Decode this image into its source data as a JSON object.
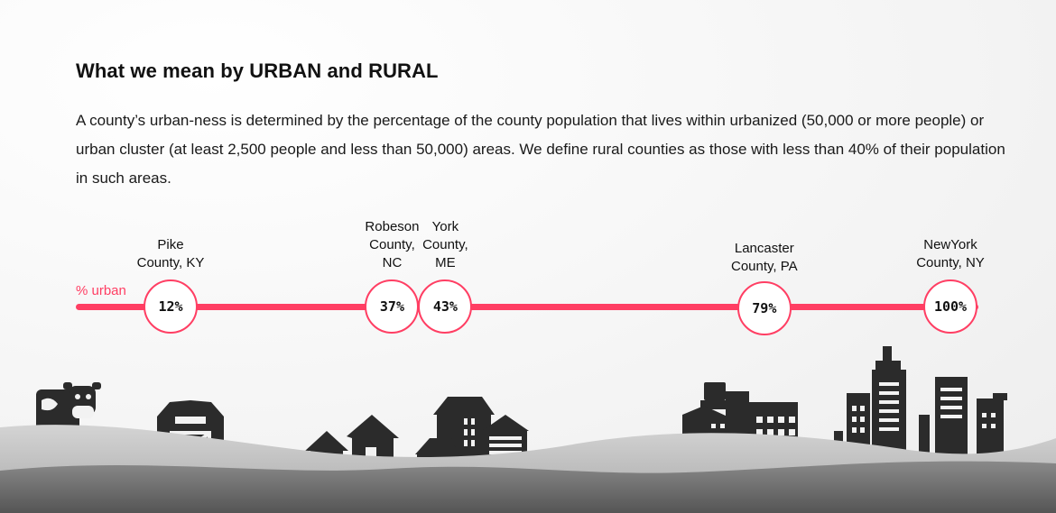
{
  "title": "What we mean by URBAN and RURAL",
  "description": "A county’s urban-ness is determined by the percentage of the county population that lives within urbanized (50,000 or more people) or urban cluster (at least 2,500 people and less than 50,000) areas. We define rural counties as those with less than 40% of their population in such areas.",
  "axis_label": "% urban",
  "colors": {
    "accent": "#ff3e63",
    "silhouette": "#2b2b2b",
    "hill_light": "#cfcfcf",
    "hill_dark": "#707070"
  },
  "icons": [
    "cow-icon",
    "barn-icon",
    "houses-icon",
    "suburb-icon",
    "factory-icon",
    "skyline-icon"
  ],
  "counties": [
    {
      "name_lines": [
        "Pike",
        "County, KY"
      ],
      "percent": 12,
      "label": "12%"
    },
    {
      "name_lines": [
        "Robeson",
        "County,",
        "NC"
      ],
      "percent": 37,
      "label": "37%"
    },
    {
      "name_lines": [
        "York",
        "County,",
        "ME"
      ],
      "percent": 43,
      "label": "43%"
    },
    {
      "name_lines": [
        "Lancaster",
        "County, PA"
      ],
      "percent": 79,
      "label": "79%"
    },
    {
      "name_lines": [
        "NewYork",
        "County, NY"
      ],
      "percent": 100,
      "label": "100%"
    }
  ]
}
